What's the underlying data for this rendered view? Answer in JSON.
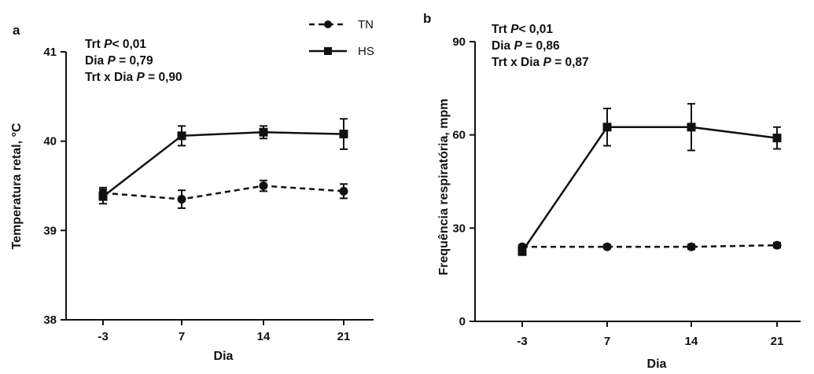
{
  "chart_data": [
    {
      "type": "line",
      "panel_label": "a",
      "stats": [
        {
          "pre": "Trt ",
          "p": "P",
          "post": "< 0,01"
        },
        {
          "pre": "Dia ",
          "p": "P",
          "post": " = 0,79"
        },
        {
          "pre": "Trt x Dia ",
          "p": "P",
          "post": " = 0,90"
        }
      ],
      "xlabel": "Dia",
      "ylabel": "Temperatura retal, °C",
      "categories": [
        "-3",
        "7",
        "14",
        "21"
      ],
      "ylim": [
        38,
        41
      ],
      "yticks": [
        "38",
        "39",
        "40",
        "41"
      ],
      "series": [
        {
          "name": "TN",
          "values": [
            39.42,
            39.35,
            39.5,
            39.44
          ],
          "errors": [
            0.06,
            0.1,
            0.06,
            0.08
          ],
          "style": "dashed",
          "marker": "circle"
        },
        {
          "name": "HS",
          "values": [
            39.38,
            40.06,
            40.1,
            40.08
          ],
          "errors": [
            0.08,
            0.11,
            0.07,
            0.17
          ],
          "style": "solid",
          "marker": "square"
        }
      ],
      "legend": "top-center",
      "grid": false
    },
    {
      "type": "line",
      "panel_label": "b",
      "stats": [
        {
          "pre": "Trt ",
          "p": "P",
          "post": "< 0,01"
        },
        {
          "pre": "Dia ",
          "p": "P",
          "post": " = 0,86"
        },
        {
          "pre": "Trt x Dia ",
          "p": "P",
          "post": " = 0,87"
        }
      ],
      "xlabel": "Dia",
      "ylabel": "Frequência respiratória, mpm",
      "categories": [
        "-3",
        "7",
        "14",
        "21"
      ],
      "ylim": [
        0,
        90
      ],
      "yticks": [
        "0",
        "30",
        "60",
        "90"
      ],
      "series": [
        {
          "name": "TN",
          "values": [
            24,
            24,
            24,
            24.5
          ],
          "errors": [
            0.6,
            0.6,
            0.8,
            0.8
          ],
          "style": "dashed",
          "marker": "circle"
        },
        {
          "name": "HS",
          "values": [
            22.5,
            62.5,
            62.5,
            59
          ],
          "errors": [
            1.2,
            6,
            7.5,
            3.5
          ],
          "style": "solid",
          "marker": "square"
        }
      ],
      "grid": false
    }
  ]
}
